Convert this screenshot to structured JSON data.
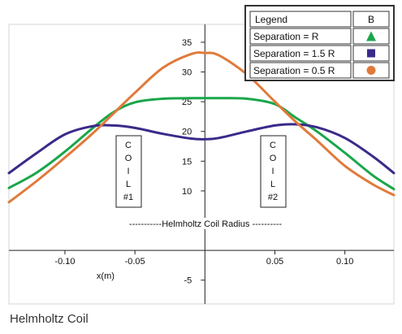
{
  "caption": "Helmholtz Coil",
  "chart_data": {
    "type": "line",
    "xlabel": "x(m)",
    "ylabel": "",
    "xlim": [
      -0.14,
      0.135
    ],
    "ylim": [
      -9,
      38
    ],
    "x_ticks": [
      -0.1,
      -0.05,
      0.05,
      0.1
    ],
    "x_tick_labels": [
      "-0.10",
      "-0.05",
      "0.05",
      "0.10"
    ],
    "y_ticks": [
      35,
      30,
      25,
      20,
      15,
      10,
      -5
    ],
    "y_tick_labels": [
      "35",
      "30",
      "25",
      "20",
      "15",
      "10",
      "-5"
    ],
    "legend": {
      "placement": "top-right",
      "header": "Legend",
      "header_col": "B"
    },
    "series": [
      {
        "name": "Separation = R",
        "marker": "triangle",
        "color": "#1aa64a",
        "x": [
          -0.14,
          -0.12,
          -0.1,
          -0.08,
          -0.065,
          -0.05,
          -0.03,
          -0.01,
          0.0,
          0.01,
          0.03,
          0.05,
          0.065,
          0.08,
          0.1,
          0.12,
          0.135
        ],
        "y": [
          10.5,
          13.1,
          16.6,
          20.6,
          23.3,
          24.9,
          25.5,
          25.6,
          25.6,
          25.6,
          25.5,
          24.6,
          22.3,
          20.0,
          16.4,
          12.6,
          10.3
        ]
      },
      {
        "name": "Separation = 1.5 R",
        "marker": "square",
        "color": "#3a2a8a",
        "x": [
          -0.14,
          -0.12,
          -0.1,
          -0.08,
          -0.065,
          -0.05,
          -0.03,
          -0.01,
          0.0,
          0.01,
          0.03,
          0.05,
          0.065,
          0.08,
          0.1,
          0.12,
          0.135
        ],
        "y": [
          13.0,
          16.4,
          19.5,
          20.9,
          21.0,
          20.6,
          19.6,
          18.8,
          18.7,
          18.9,
          20.0,
          21.0,
          21.2,
          20.7,
          18.9,
          15.8,
          13.0
        ]
      },
      {
        "name": "Separation = 0.5 R",
        "marker": "circle",
        "color": "#e07a3a",
        "x": [
          -0.14,
          -0.12,
          -0.1,
          -0.08,
          -0.065,
          -0.05,
          -0.03,
          -0.01,
          0.0,
          0.01,
          0.03,
          0.05,
          0.065,
          0.08,
          0.1,
          0.12,
          0.135
        ],
        "y": [
          8.1,
          11.7,
          15.6,
          19.7,
          23.1,
          26.5,
          30.7,
          33.0,
          33.2,
          32.8,
          29.6,
          25.0,
          21.6,
          18.5,
          14.2,
          11.1,
          9.3
        ]
      }
    ],
    "annotations": {
      "coil1": [
        "C",
        "O",
        "I",
        "L",
        "#1"
      ],
      "coil2": [
        "C",
        "O",
        "I",
        "L",
        "#2"
      ],
      "radius": "-----------Helmholtz Coil Radius ----------"
    },
    "grid": false
  }
}
